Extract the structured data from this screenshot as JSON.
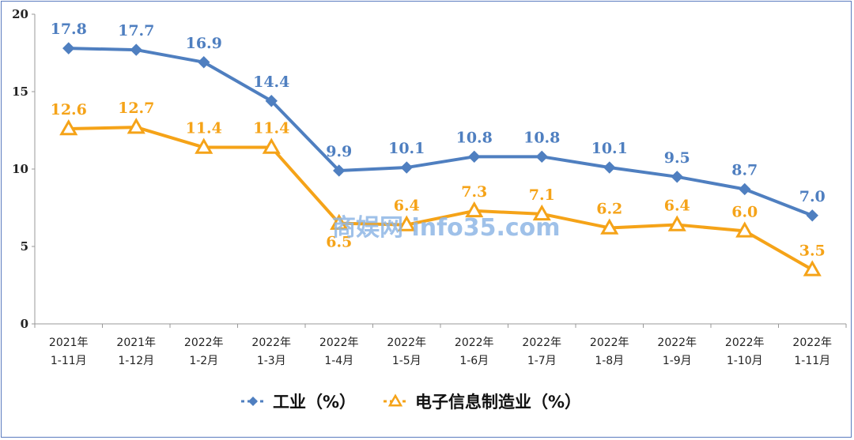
{
  "chart_data": {
    "type": "line",
    "categories": [
      [
        "2021年",
        "1-11月"
      ],
      [
        "2021年",
        "1-12月"
      ],
      [
        "2022年",
        "1-2月"
      ],
      [
        "2022年",
        "1-3月"
      ],
      [
        "2022年",
        "1-4月"
      ],
      [
        "2022年",
        "1-5月"
      ],
      [
        "2022年",
        "1-6月"
      ],
      [
        "2022年",
        "1-7月"
      ],
      [
        "2022年",
        "1-8月"
      ],
      [
        "2022年",
        "1-9月"
      ],
      [
        "2022年",
        "1-10月"
      ],
      [
        "2022年",
        "1-11月"
      ]
    ],
    "series": [
      {
        "name": "工业（%）",
        "color": "#4f7fc0",
        "marker": "diamond",
        "values": [
          17.8,
          17.7,
          16.9,
          14.4,
          9.9,
          10.1,
          10.8,
          10.8,
          10.1,
          9.5,
          8.7,
          7.0
        ],
        "labels": [
          "17.8",
          "17.7",
          "16.9",
          "14.4",
          "9.9",
          "10.1",
          "10.8",
          "10.8",
          "10.1",
          "9.5",
          "8.7",
          "7.0"
        ]
      },
      {
        "name": "电子信息制造业（%）",
        "color": "#f5a318",
        "marker": "triangle",
        "values": [
          12.6,
          12.7,
          11.4,
          11.4,
          6.5,
          6.4,
          7.3,
          7.1,
          6.2,
          6.4,
          6.0,
          3.5
        ],
        "labels": [
          "12.6",
          "12.7",
          "11.4",
          "11.4",
          "6.5",
          "6.4",
          "7.3",
          "7.1",
          "6.2",
          "6.4",
          "6.0",
          "3.5"
        ]
      }
    ],
    "ylim": [
      0,
      20
    ],
    "yticks": [
      "0",
      "5",
      "10",
      "15",
      "20"
    ],
    "grid": false,
    "legend": "bottom",
    "watermark": "商娱网 info35.com"
  }
}
